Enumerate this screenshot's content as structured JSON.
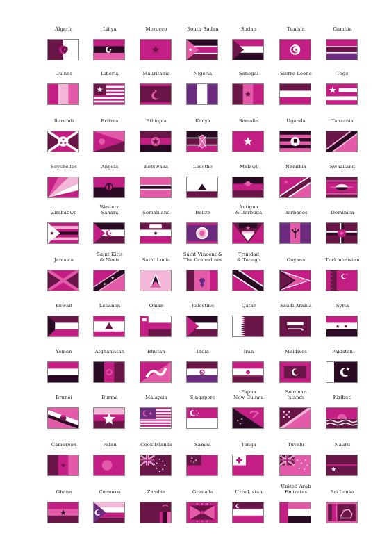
{
  "sheet": {
    "colors": {
      "black": "#2b0a23",
      "deep": "#6a1548",
      "magenta": "#c21e84",
      "pink": "#e35aa8",
      "light": "#f3b7d8",
      "white": "#ffffff",
      "purple": "#6b2b7e"
    },
    "flags": [
      {
        "name": "Algeria",
        "icon": "algeria-flag"
      },
      {
        "name": "Libya",
        "icon": "libya-flag"
      },
      {
        "name": "Morocco",
        "icon": "morocco-flag"
      },
      {
        "name": "South Sudan",
        "icon": "south-sudan-flag"
      },
      {
        "name": "Sudan",
        "icon": "sudan-flag"
      },
      {
        "name": "Tunisia",
        "icon": "tunisia-flag"
      },
      {
        "name": "Gambia",
        "icon": "gambia-flag"
      },
      {
        "name": "Guinea",
        "icon": "guinea-flag"
      },
      {
        "name": "Liberia",
        "icon": "liberia-flag"
      },
      {
        "name": "Mauritania",
        "icon": "mauritania-flag"
      },
      {
        "name": "Nigeria",
        "icon": "nigeria-flag"
      },
      {
        "name": "Senegal",
        "icon": "senegal-flag"
      },
      {
        "name": "Sierre Leone",
        "icon": "sierra-leone-flag"
      },
      {
        "name": "Togo",
        "icon": "togo-flag"
      },
      {
        "name": "Burundi",
        "icon": "burundi-flag"
      },
      {
        "name": "Eritrea",
        "icon": "eritrea-flag"
      },
      {
        "name": "Ethiopia",
        "icon": "ethiopia-flag"
      },
      {
        "name": "Kenya",
        "icon": "kenya-flag"
      },
      {
        "name": "Somalia",
        "icon": "somalia-flag"
      },
      {
        "name": "Uganda",
        "icon": "uganda-flag"
      },
      {
        "name": "Tanzania",
        "icon": "tanzania-flag"
      },
      {
        "name": "Seychelles",
        "icon": "seychelles-flag"
      },
      {
        "name": "Angola",
        "icon": "angola-flag"
      },
      {
        "name": "Botswana",
        "icon": "botswana-flag"
      },
      {
        "name": "Lesotho",
        "icon": "lesotho-flag"
      },
      {
        "name": "Malawi",
        "icon": "malawi-flag"
      },
      {
        "name": "Namibia",
        "icon": "namibia-flag"
      },
      {
        "name": "Swaziland",
        "icon": "swaziland-flag"
      },
      {
        "name": "Zimbabwe",
        "icon": "zimbabwe-flag"
      },
      {
        "name": "Western\nSahara",
        "icon": "western-sahara-flag"
      },
      {
        "name": "Somaliland",
        "icon": "somaliland-flag"
      },
      {
        "name": "Belize",
        "icon": "belize-flag"
      },
      {
        "name": "Antigua\n& Barbuda",
        "icon": "antigua-flag"
      },
      {
        "name": "Barbados",
        "icon": "barbados-flag"
      },
      {
        "name": "Dominica",
        "icon": "dominica-flag"
      },
      {
        "name": "Jamaica",
        "icon": "jamaica-flag"
      },
      {
        "name": "Saint Kitts\n& Nevis",
        "icon": "saint-kitts-flag"
      },
      {
        "name": "Saint Lucia",
        "icon": "saint-lucia-flag"
      },
      {
        "name": "Saint Vincent &\nThe Grenadines",
        "icon": "saint-vincent-flag"
      },
      {
        "name": "Trinidad\n& Tobago",
        "icon": "trinidad-flag"
      },
      {
        "name": "Guyana",
        "icon": "guyana-flag"
      },
      {
        "name": "Turkmenistan",
        "icon": "turkmenistan-flag"
      },
      {
        "name": "Kuwait",
        "icon": "kuwait-flag"
      },
      {
        "name": "Lebanon",
        "icon": "lebanon-flag"
      },
      {
        "name": "Oman",
        "icon": "oman-flag"
      },
      {
        "name": "Palestine",
        "icon": "palestine-flag"
      },
      {
        "name": "Qatar",
        "icon": "qatar-flag"
      },
      {
        "name": "Saudi Arabia",
        "icon": "saudi-arabia-flag"
      },
      {
        "name": "Syria",
        "icon": "syria-flag"
      },
      {
        "name": "Yemen",
        "icon": "yemen-flag"
      },
      {
        "name": "Afghanistan",
        "icon": "afghanistan-flag"
      },
      {
        "name": "Bhutan",
        "icon": "bhutan-flag"
      },
      {
        "name": "India",
        "icon": "india-flag"
      },
      {
        "name": "Iran",
        "icon": "iran-flag"
      },
      {
        "name": "Maldives",
        "icon": "maldives-flag"
      },
      {
        "name": "Pakistan",
        "icon": "pakistan-flag"
      },
      {
        "name": "Brunei",
        "icon": "brunei-flag"
      },
      {
        "name": "Burma",
        "icon": "burma-flag"
      },
      {
        "name": "Malaysia",
        "icon": "malaysia-flag"
      },
      {
        "name": "Singapore",
        "icon": "singapore-flag"
      },
      {
        "name": "Papua\nNew Guinea",
        "icon": "papua-new-guinea-flag"
      },
      {
        "name": "Soloman\nIslands",
        "icon": "solomon-islands-flag"
      },
      {
        "name": "Kiribati",
        "icon": "kiribati-flag"
      },
      {
        "name": "Cameroon",
        "icon": "cameroon-flag"
      },
      {
        "name": "Palau",
        "icon": "palau-flag"
      },
      {
        "name": "Cook Islands",
        "icon": "cook-islands-flag"
      },
      {
        "name": "Samoa",
        "icon": "samoa-flag"
      },
      {
        "name": "Tonga",
        "icon": "tonga-flag"
      },
      {
        "name": "Tuvalu",
        "icon": "tuvalu-flag"
      },
      {
        "name": "Nauru",
        "icon": "nauru-flag"
      },
      {
        "name": "Ghana",
        "icon": "ghana-flag"
      },
      {
        "name": "Comoros",
        "icon": "comoros-flag"
      },
      {
        "name": "Zambia",
        "icon": "zambia-flag"
      },
      {
        "name": "Grenada",
        "icon": "grenada-flag"
      },
      {
        "name": "Uzbekistan",
        "icon": "uzbekistan-flag"
      },
      {
        "name": "United Arab\nEmirates",
        "icon": "uae-flag"
      },
      {
        "name": "Sri Lanka",
        "icon": "sri-lanka-flag"
      }
    ]
  }
}
